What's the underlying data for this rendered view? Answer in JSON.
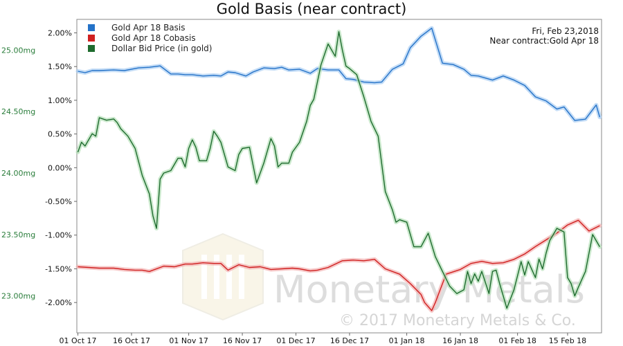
{
  "chart_data": {
    "type": "line",
    "title": "Gold Basis (near contract)",
    "date_label": "Fri, Feb 23,2018",
    "contract_label": "Near contract:Gold Apr 18",
    "watermark_brand": "Monetary Metals",
    "copyright": "© 2017 Monetary Metals & Co.",
    "x_ticks": [
      "01 Oct 17",
      "16 Oct 17",
      "01 Nov 17",
      "16 Nov 17",
      "01 Dec 17",
      "16 Dec 17",
      "01 Jan 18",
      "16 Jan 18",
      "01 Feb 18",
      "15 Feb 18"
    ],
    "x_range": [
      -0.3,
      146.5
    ],
    "y_left": {
      "ticks": [
        "2.00%",
        "1.50%",
        "1.00%",
        "0.50%",
        "0.00%",
        "-0.50%",
        "-1.00%",
        "-1.50%",
        "-2.00%"
      ],
      "tick_values": [
        2.0,
        1.5,
        1.0,
        0.5,
        0.0,
        -0.5,
        -1.0,
        -1.5,
        -2.0
      ],
      "range": [
        -2.45,
        2.2
      ]
    },
    "y_right": {
      "ticks": [
        "25.00mg",
        "24.50mg",
        "24.00mg",
        "23.50mg",
        "23.00mg"
      ],
      "tick_values": [
        25.0,
        24.5,
        24.0,
        23.5,
        23.0
      ],
      "range": [
        22.7,
        25.25
      ]
    },
    "series": [
      {
        "name": "Gold Apr 18 Basis",
        "color": "#2472c8",
        "axis": "left",
        "x": [
          0,
          2,
          4,
          6,
          10,
          13,
          17,
          20,
          23,
          26,
          28,
          30,
          32,
          35,
          38,
          40,
          42,
          44,
          47,
          49,
          52,
          55,
          57,
          59,
          62,
          65,
          67,
          70,
          73,
          75,
          77,
          80,
          83,
          85,
          88,
          91,
          93,
          96,
          99,
          102,
          105,
          108,
          110,
          112,
          116,
          119,
          122,
          125,
          128,
          131,
          134,
          136,
          139,
          142,
          145,
          146
        ],
        "y": [
          1.43,
          1.41,
          1.44,
          1.44,
          1.45,
          1.44,
          1.48,
          1.49,
          1.51,
          1.39,
          1.39,
          1.38,
          1.38,
          1.36,
          1.37,
          1.36,
          1.42,
          1.41,
          1.36,
          1.42,
          1.48,
          1.47,
          1.49,
          1.45,
          1.46,
          1.4,
          1.47,
          1.45,
          1.45,
          1.32,
          1.31,
          1.27,
          1.26,
          1.27,
          1.46,
          1.54,
          1.78,
          1.95,
          2.07,
          1.55,
          1.53,
          1.46,
          1.37,
          1.36,
          1.3,
          1.36,
          1.3,
          1.22,
          1.05,
          0.99,
          0.87,
          0.9,
          0.7,
          0.72,
          0.93,
          0.75
        ]
      },
      {
        "name": "Gold Apr 18 Cobasis",
        "color": "#d02020",
        "axis": "left",
        "x": [
          0,
          3,
          6,
          10,
          13,
          16,
          18,
          20,
          24,
          27,
          30,
          32,
          35,
          38,
          40,
          42,
          45,
          48,
          51,
          54,
          57,
          60,
          62,
          65,
          67,
          70,
          74,
          77,
          80,
          83,
          86,
          90,
          93,
          96,
          97,
          99,
          100,
          103,
          107,
          110,
          113,
          116,
          119,
          122,
          125,
          128,
          131,
          134,
          137,
          140,
          143,
          146
        ],
        "y": [
          -1.47,
          -1.48,
          -1.49,
          -1.49,
          -1.51,
          -1.52,
          -1.52,
          -1.54,
          -1.46,
          -1.47,
          -1.43,
          -1.43,
          -1.41,
          -1.42,
          -1.42,
          -1.52,
          -1.44,
          -1.48,
          -1.47,
          -1.51,
          -1.5,
          -1.49,
          -1.5,
          -1.53,
          -1.52,
          -1.48,
          -1.38,
          -1.37,
          -1.38,
          -1.36,
          -1.5,
          -1.58,
          -1.72,
          -1.88,
          -2.0,
          -2.12,
          -2.0,
          -1.58,
          -1.51,
          -1.42,
          -1.39,
          -1.42,
          -1.41,
          -1.36,
          -1.28,
          -1.17,
          -1.07,
          -0.97,
          -0.85,
          -0.78,
          -0.94,
          -0.86
        ]
      },
      {
        "name": "Dollar Bid Price (in gold)",
        "color": "#1e6b2e",
        "axis": "right",
        "x": [
          0,
          1,
          2,
          3,
          4,
          5,
          6,
          8,
          10,
          11,
          12,
          14,
          16,
          18,
          20,
          21,
          22,
          23,
          24,
          26,
          28,
          29,
          30,
          31,
          32,
          33,
          34,
          36,
          37,
          38,
          39,
          40,
          42,
          44,
          45,
          46,
          48,
          50,
          52,
          54,
          55,
          56,
          57,
          59,
          60,
          62,
          64,
          65,
          66,
          68,
          70,
          72,
          73,
          74,
          75,
          76,
          78,
          80,
          82,
          84,
          86,
          88,
          89,
          90,
          92,
          94,
          96,
          98,
          100,
          102,
          104,
          106,
          108,
          109,
          110,
          111,
          112,
          113,
          115,
          116,
          117,
          118,
          120,
          122,
          124,
          125,
          126,
          128,
          129,
          130,
          131,
          132,
          134,
          136,
          137,
          138,
          139,
          140,
          142,
          144,
          146
        ],
        "y": [
          24.17,
          24.25,
          24.22,
          24.27,
          24.32,
          24.3,
          24.45,
          24.43,
          24.44,
          24.41,
          24.36,
          24.3,
          24.2,
          23.98,
          23.83,
          23.65,
          23.55,
          23.95,
          24.0,
          24.02,
          24.12,
          24.12,
          24.05,
          24.2,
          24.27,
          24.21,
          24.1,
          24.1,
          24.2,
          24.34,
          24.3,
          24.25,
          24.05,
          24.02,
          24.15,
          24.2,
          24.21,
          23.92,
          24.08,
          24.28,
          24.22,
          24.05,
          24.08,
          24.08,
          24.17,
          24.25,
          24.42,
          24.55,
          24.6,
          24.88,
          25.05,
          24.95,
          25.15,
          25.0,
          24.87,
          24.85,
          24.8,
          24.62,
          24.42,
          24.3,
          23.85,
          23.7,
          23.6,
          23.62,
          23.6,
          23.4,
          23.4,
          23.51,
          23.32,
          23.2,
          23.08,
          23.02,
          23.05,
          23.2,
          23.1,
          23.18,
          23.12,
          23.2,
          23.02,
          23.2,
          23.21,
          23.1,
          22.9,
          23.05,
          23.28,
          23.17,
          23.28,
          23.15,
          23.3,
          23.22,
          23.35,
          23.45,
          23.55,
          23.52,
          23.15,
          23.1,
          23.0,
          23.07,
          23.2,
          23.5,
          23.4
        ]
      }
    ]
  }
}
